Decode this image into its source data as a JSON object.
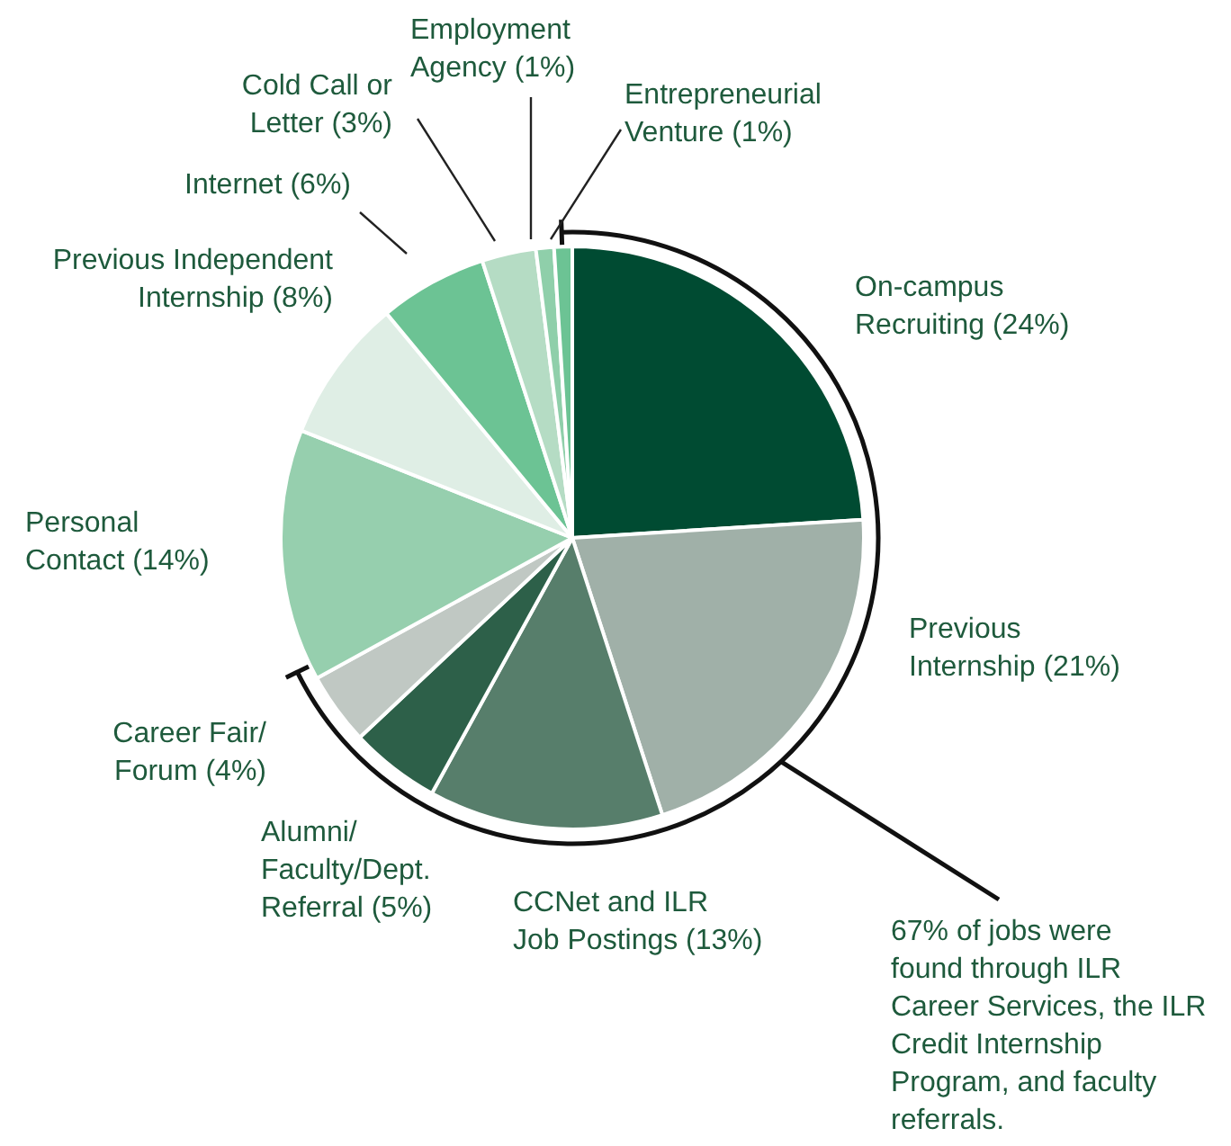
{
  "chart_data": {
    "type": "pie",
    "categories": [
      "On-campus\nRecruiting (24%)",
      "Previous\nInternship (21%)",
      "CCNet and ILR\nJob Postings (13%)",
      "Alumni/\nFaculty/Dept.\nReferral (5%)",
      "Career Fair/\nForum (4%)",
      "Personal\nContact (14%)",
      "Previous Independent\nInternship (8%)",
      "Internet (6%)",
      "Cold Call or\nLetter (3%)",
      "Employment\nAgency (1%)",
      "Entrepreneurial\nVenture (1%)"
    ],
    "values": [
      24,
      21,
      13,
      5,
      4,
      14,
      8,
      6,
      3,
      1,
      1
    ],
    "colors": [
      "#004b32",
      "#a0b0a8",
      "#577e6b",
      "#2d6049",
      "#c0c8c3",
      "#96cfae",
      "#dfeee5",
      "#6cc394",
      "#b5dcc4",
      "#8fcfaa",
      "#6cc394"
    ],
    "annotations": [
      "67% of jobs were\nfound through ILR\nCareer Services, the ILR\nCredit Internship\nProgram, and faculty\nreferrals."
    ],
    "legend": false
  }
}
